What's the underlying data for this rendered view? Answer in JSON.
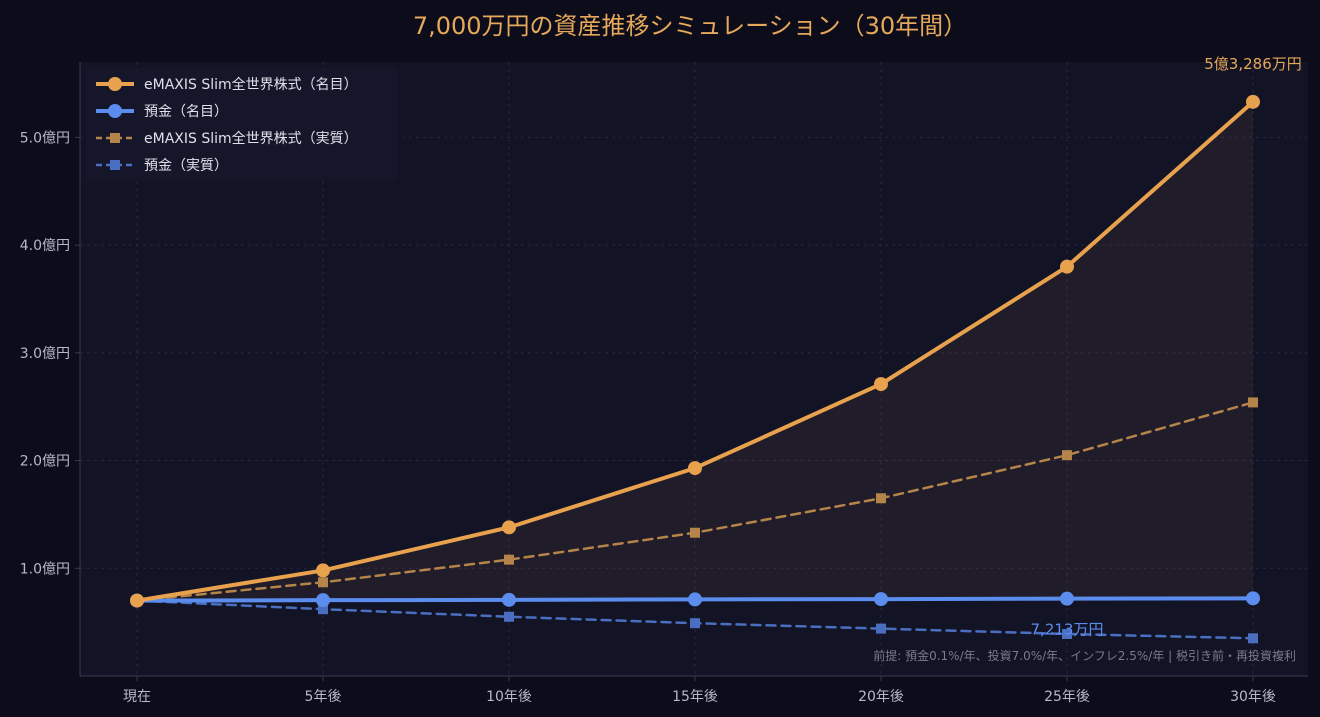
{
  "colors": {
    "background": "#0c0c1a",
    "plot_background": "#131326",
    "grid": "#262640",
    "axis": "#3a3a55",
    "invest": "#e8a24e",
    "deposit": "#5b8def",
    "invest_real": "#b5844a",
    "deposit_real": "#4a6fc0",
    "title": "#e6a85a"
  },
  "chart_data": {
    "type": "line",
    "title": "7,000万円の資産推移シミュレーション（30年間）",
    "xlabel": "",
    "ylabel": "",
    "categories": [
      "現在",
      "5年後",
      "10年後",
      "15年後",
      "20年後",
      "25年後",
      "30年後"
    ],
    "x_values": [
      0,
      5,
      10,
      15,
      20,
      25,
      30
    ],
    "y_unit": "億円",
    "ylim": [
      0,
      5.7
    ],
    "yticks": [
      1.0,
      2.0,
      3.0,
      4.0,
      5.0
    ],
    "ytick_labels": [
      "1.0億円",
      "2.0億円",
      "3.0億円",
      "4.0億円",
      "5.0億円"
    ],
    "grid": true,
    "legend_position": "top-left",
    "series": [
      {
        "name": "eMAXIS Slim全世界株式（名目）",
        "style": "solid",
        "marker": "circle",
        "color": "#e8a24e",
        "fill_between_deposit": true,
        "values": [
          0.7,
          0.98,
          1.38,
          1.93,
          2.71,
          3.8,
          5.33
        ]
      },
      {
        "name": "預金（名目）",
        "style": "solid",
        "marker": "circle",
        "color": "#5b8def",
        "values": [
          0.7,
          0.704,
          0.707,
          0.711,
          0.714,
          0.718,
          0.721
        ]
      },
      {
        "name": "eMAXIS Slim全世界株式（実質）",
        "style": "dashed",
        "marker": "square",
        "color": "#b5844a",
        "values": [
          0.7,
          0.87,
          1.08,
          1.33,
          1.65,
          2.05,
          2.54
        ]
      },
      {
        "name": "預金（実質）",
        "style": "dashed",
        "marker": "square",
        "color": "#4a6fc0",
        "values": [
          0.7,
          0.62,
          0.55,
          0.49,
          0.44,
          0.39,
          0.35
        ]
      }
    ],
    "annotations": [
      {
        "text": "5億3,286万円",
        "series": 0,
        "index": 6,
        "color": "#e6a85a"
      },
      {
        "text": "7,213万円",
        "series": 1,
        "index": 5,
        "color": "#5b8def"
      }
    ],
    "note": "前提: 預金0.1%/年、投資7.0%/年、インフレ2.5%/年 | 税引き前・再投資複利"
  }
}
